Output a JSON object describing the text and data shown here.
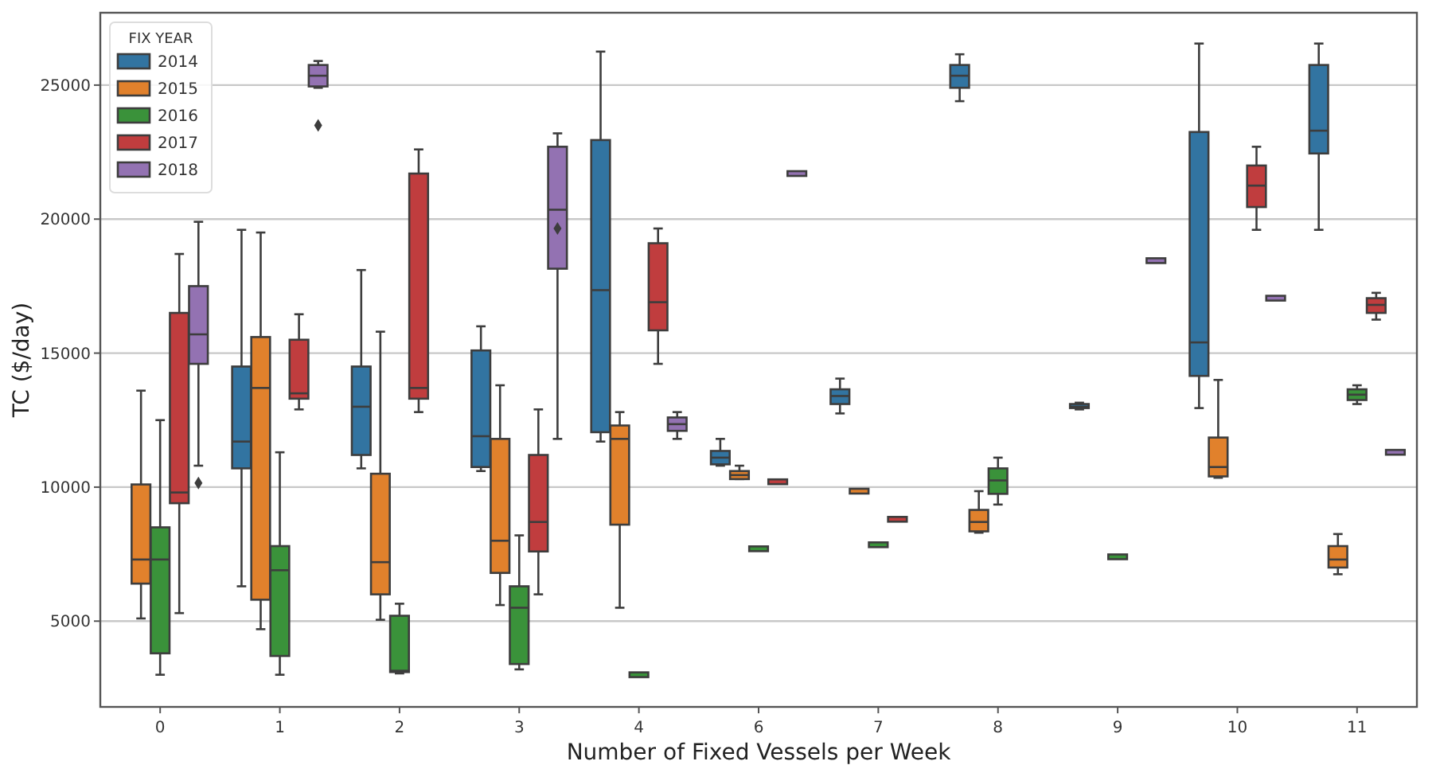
{
  "chart_data": {
    "type": "box",
    "xlabel": "Number of Fixed Vessels per Week",
    "ylabel": "TC ($/day)",
    "legend_title": "FIX YEAR",
    "legend": "top left",
    "grid": "y",
    "categories": [
      "0",
      "1",
      "2",
      "3",
      "4",
      "6",
      "7",
      "8",
      "9",
      "10",
      "11"
    ],
    "ylim": [
      1800,
      27700
    ],
    "yticks": [
      5000,
      10000,
      15000,
      20000,
      25000
    ],
    "series": [
      {
        "name": "2014",
        "color": "#3274a1",
        "boxes": [
          null,
          {
            "low": 6300,
            "q1": 10700,
            "median": 11700,
            "q3": 14500,
            "high": 19600
          },
          {
            "low": 10700,
            "q1": 11200,
            "median": 13000,
            "q3": 14500,
            "high": 18100
          },
          {
            "low": 10600,
            "q1": 10750,
            "median": 11900,
            "q3": 15100,
            "high": 16000
          },
          {
            "low": 11700,
            "q1": 12050,
            "median": 17350,
            "q3": 22950,
            "high": 26250
          },
          {
            "low": 10800,
            "q1": 10850,
            "median": 11100,
            "q3": 11350,
            "high": 11800
          },
          {
            "low": 12750,
            "q1": 13100,
            "median": 13400,
            "q3": 13650,
            "high": 14050
          },
          {
            "low": 24400,
            "q1": 24900,
            "median": 25350,
            "q3": 25750,
            "high": 26150
          },
          {
            "low": 12900,
            "q1": 12950,
            "median": 13000,
            "q3": 13100,
            "high": 13150
          },
          {
            "low": 12950,
            "q1": 14150,
            "median": 15400,
            "q3": 23250,
            "high": 26550
          },
          {
            "low": 19600,
            "q1": 22450,
            "median": 23300,
            "q3": 25750,
            "high": 26550
          }
        ]
      },
      {
        "name": "2015",
        "color": "#e1812c",
        "boxes": [
          {
            "low": 5100,
            "q1": 6400,
            "median": 7300,
            "q3": 10100,
            "high": 13600
          },
          {
            "low": 4700,
            "q1": 5800,
            "median": 13700,
            "q3": 15600,
            "high": 19500
          },
          {
            "low": 5050,
            "q1": 6000,
            "median": 7200,
            "q3": 10500,
            "high": 15800
          },
          {
            "low": 5600,
            "q1": 6800,
            "median": 8000,
            "q3": 11800,
            "high": 13800
          },
          {
            "low": 5500,
            "q1": 8600,
            "median": 11800,
            "q3": 12300,
            "high": 12800
          },
          {
            "low": 10300,
            "q1": 10300,
            "median": 10450,
            "q3": 10600,
            "high": 10800
          },
          {
            "low": 9850,
            "q1": 9850,
            "median": 9850,
            "q3": 9850,
            "high": 9850
          },
          {
            "low": 8300,
            "q1": 8350,
            "median": 8700,
            "q3": 9150,
            "high": 9850
          },
          null,
          {
            "low": 10350,
            "q1": 10400,
            "median": 10750,
            "q3": 11850,
            "high": 14000
          },
          {
            "low": 6750,
            "q1": 7000,
            "median": 7300,
            "q3": 7800,
            "high": 8250
          }
        ]
      },
      {
        "name": "2016",
        "color": "#3a923a",
        "boxes": [
          {
            "low": 3000,
            "q1": 3800,
            "median": 7300,
            "q3": 8500,
            "high": 12500
          },
          {
            "low": 3000,
            "q1": 3700,
            "median": 6900,
            "q3": 7800,
            "high": 11300
          },
          {
            "low": 3050,
            "q1": 3100,
            "median": 3150,
            "q3": 5200,
            "high": 5650
          },
          {
            "low": 3200,
            "q1": 3400,
            "median": 5500,
            "q3": 6300,
            "high": 8200
          },
          {
            "low": 3000,
            "q1": 3000,
            "median": 3000,
            "q3": 3000,
            "high": 3000
          },
          {
            "low": 7700,
            "q1": 7700,
            "median": 7700,
            "q3": 7700,
            "high": 7700
          },
          {
            "low": 7850,
            "q1": 7850,
            "median": 7850,
            "q3": 7900,
            "high": 7900
          },
          {
            "low": 9350,
            "q1": 9750,
            "median": 10250,
            "q3": 10700,
            "high": 11100
          },
          {
            "low": 7400,
            "q1": 7400,
            "median": 7400,
            "q3": 7400,
            "high": 7400
          },
          null,
          {
            "low": 13100,
            "q1": 13250,
            "median": 13450,
            "q3": 13650,
            "high": 13800
          }
        ]
      },
      {
        "name": "2017",
        "color": "#c03d3e",
        "boxes": [
          {
            "low": 5300,
            "q1": 9400,
            "median": 9800,
            "q3": 16500,
            "high": 18700
          },
          {
            "low": 12900,
            "q1": 13300,
            "median": 13500,
            "q3": 15500,
            "high": 16450
          },
          {
            "low": 12800,
            "q1": 13300,
            "median": 13700,
            "q3": 21700,
            "high": 22600
          },
          {
            "low": 6000,
            "q1": 7600,
            "median": 8700,
            "q3": 11200,
            "high": 12900
          },
          {
            "low": 14600,
            "q1": 15850,
            "median": 16900,
            "q3": 19100,
            "high": 19650
          },
          {
            "low": 10200,
            "q1": 10200,
            "median": 10200,
            "q3": 10200,
            "high": 10200
          },
          {
            "low": 8800,
            "q1": 8800,
            "median": 8800,
            "q3": 8800,
            "high": 8800
          },
          null,
          null,
          {
            "low": 19600,
            "q1": 20450,
            "median": 21250,
            "q3": 22000,
            "high": 22700
          },
          {
            "low": 16250,
            "q1": 16500,
            "median": 16800,
            "q3": 17050,
            "high": 17250
          }
        ]
      },
      {
        "name": "2018",
        "color": "#9372b2",
        "boxes": [
          {
            "low": 10800,
            "q1": 14600,
            "median": 15700,
            "q3": 17500,
            "high": 19900,
            "outliers": [
              10150
            ]
          },
          {
            "low": 24900,
            "q1": 24950,
            "median": 25350,
            "q3": 25750,
            "high": 25900,
            "outliers": [
              23500
            ]
          },
          null,
          {
            "low": 11800,
            "q1": 18150,
            "median": 20350,
            "q3": 22700,
            "high": 23200,
            "outliers": [
              19650
            ]
          },
          {
            "low": 11800,
            "q1": 12100,
            "median": 12350,
            "q3": 12600,
            "high": 12800
          },
          {
            "low": 21700,
            "q1": 21700,
            "median": 21700,
            "q3": 21700,
            "high": 21700
          },
          null,
          null,
          {
            "low": 18450,
            "q1": 18450,
            "median": 18450,
            "q3": 18450,
            "high": 18450
          },
          {
            "low": 17050,
            "q1": 17050,
            "median": 17050,
            "q3": 17050,
            "high": 17050
          },
          {
            "low": 11300,
            "q1": 11300,
            "median": 11300,
            "q3": 11300,
            "high": 11300
          }
        ]
      }
    ]
  }
}
